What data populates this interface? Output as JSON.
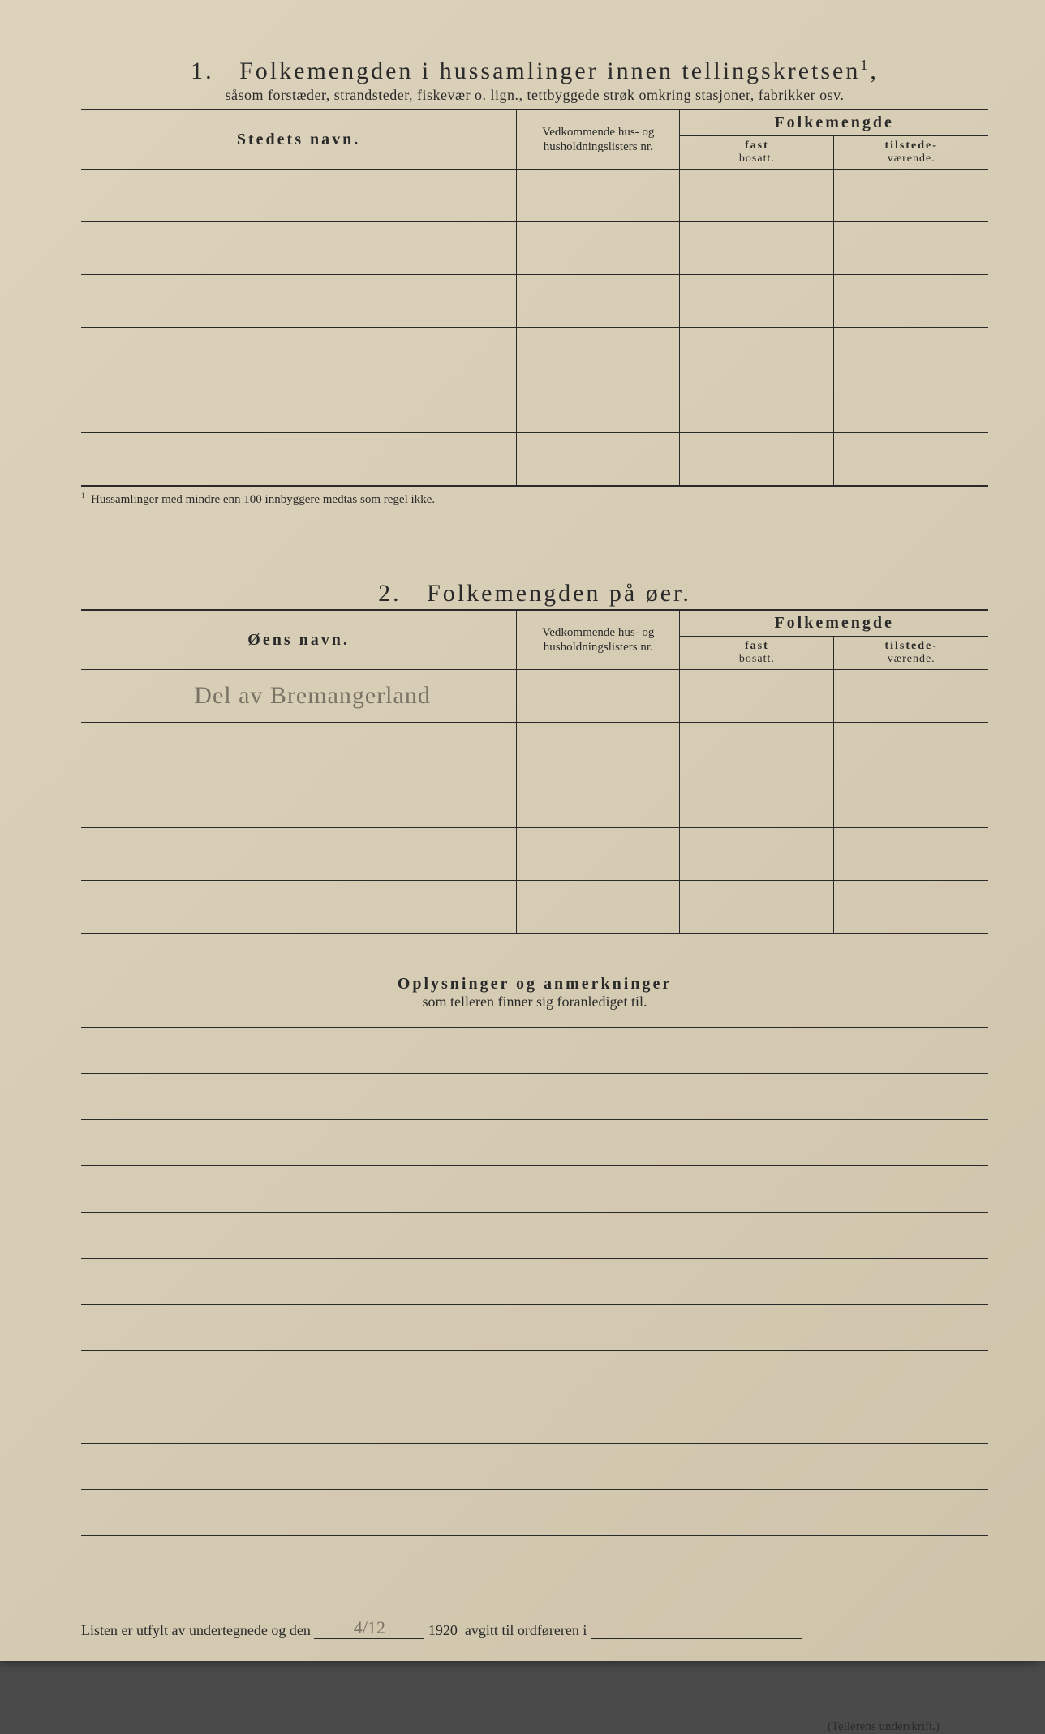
{
  "section1": {
    "number": "1.",
    "title": "Folkemengden i hussamlinger innen tellingskretsen",
    "title_sup": "1",
    "subtitle": "såsom forstæder, strandsteder, fiskevær o. lign., tettbyggede strøk omkring stasjoner, fabrikker osv.",
    "col_place": "Stedets navn.",
    "col_lists": "Vedkommende hus- og husholdningslisters nr.",
    "col_pop": "Folkemengde",
    "col_fast": "fast",
    "col_bosatt": "bosatt.",
    "col_tilstede": "tilstede-",
    "col_vaerende": "værende.",
    "footnote_mark": "1",
    "footnote": "Hussamlinger med mindre enn 100 innbyggere medtas som regel ikke.",
    "row_count": 6
  },
  "section2": {
    "number": "2.",
    "title": "Folkemengden på øer.",
    "col_island": "Øens navn.",
    "col_lists": "Vedkommende hus- og husholdningslisters nr.",
    "col_pop": "Folkemengde",
    "col_fast": "fast",
    "col_bosatt": "bosatt.",
    "col_tilstede": "tilstede-",
    "col_vaerende": "værende.",
    "handwritten_entry": "Del av Bremangerland",
    "row_count": 5
  },
  "remarks": {
    "title": "Oplysninger og anmerkninger",
    "subtitle": "som telleren finner sig foranlediget til.",
    "line_count": 11
  },
  "footer": {
    "prefix": "Listen er utfylt av undertegnede og den",
    "date_handwritten": "4/12",
    "year": "1920",
    "suffix": "avgitt til ordføreren i",
    "signature_label": "(Tellerens underskrift.)"
  }
}
